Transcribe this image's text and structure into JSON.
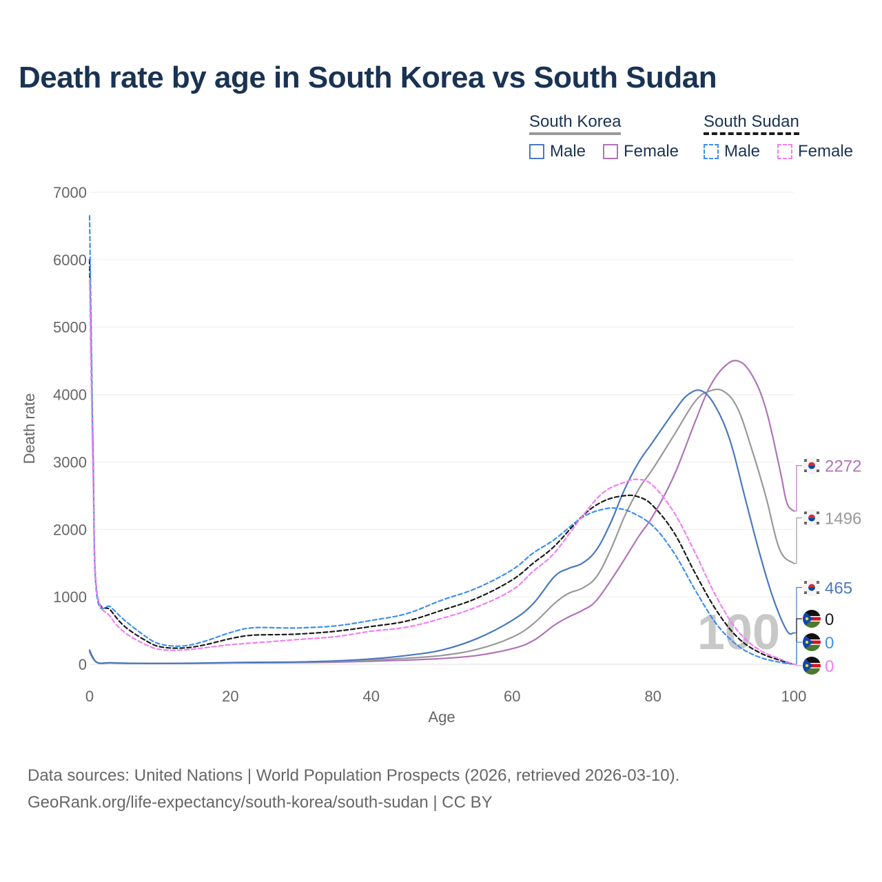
{
  "chart_data": {
    "type": "line",
    "title": "Death rate by age in South Korea vs South Sudan",
    "xlabel": "Age",
    "ylabel": "Death rate",
    "xlim": [
      0,
      100
    ],
    "ylim": [
      0,
      7000
    ],
    "xticks": [
      0,
      20,
      40,
      60,
      80,
      100
    ],
    "yticks": [
      0,
      1000,
      2000,
      3000,
      4000,
      5000,
      6000,
      7000
    ],
    "grid": true,
    "year_label": "100",
    "legend": {
      "groups": [
        {
          "name": "South Korea",
          "color": "#999999",
          "dash": false,
          "items": [
            {
              "label": "Male",
              "color": "#4a78c0",
              "dash": false
            },
            {
              "label": "Female",
              "color": "#b073b8",
              "dash": false
            }
          ]
        },
        {
          "name": "South Sudan",
          "color": "#1a1a1a",
          "dash": true,
          "items": [
            {
              "label": "Male",
              "color": "#3d8ef0",
              "dash": true
            },
            {
              "label": "Female",
              "color": "#f27ef2",
              "dash": true
            }
          ]
        }
      ]
    },
    "series": [
      {
        "name": "South Korea Female",
        "color": "#b073b8",
        "dash": false,
        "end_label": "2272",
        "flag": "south-korea",
        "x": [
          0,
          1,
          3,
          5,
          8,
          10,
          15,
          20,
          25,
          30,
          35,
          40,
          45,
          50,
          55,
          60,
          63,
          66,
          68,
          70,
          72,
          75,
          78,
          80,
          83,
          86,
          88,
          90,
          92,
          94,
          96,
          98,
          99,
          100
        ],
        "y": [
          180,
          30,
          20,
          15,
          12,
          12,
          14,
          20,
          22,
          25,
          32,
          45,
          62,
          85,
          130,
          230,
          350,
          580,
          700,
          800,
          950,
          1400,
          1900,
          2200,
          2800,
          3600,
          4100,
          4400,
          4500,
          4300,
          3800,
          2900,
          2400,
          2272
        ]
      },
      {
        "name": "South Korea Total",
        "color": "#999999",
        "dash": false,
        "end_label": "1496",
        "flag": "south-korea",
        "x": [
          0,
          1,
          3,
          5,
          8,
          10,
          15,
          20,
          25,
          30,
          35,
          40,
          45,
          50,
          55,
          60,
          63,
          66,
          68,
          70,
          72,
          74,
          76,
          78,
          80,
          83,
          86,
          88,
          90,
          92,
          94,
          96,
          98,
          100
        ],
        "y": [
          200,
          30,
          22,
          15,
          13,
          12,
          15,
          22,
          25,
          30,
          40,
          60,
          90,
          130,
          220,
          400,
          600,
          900,
          1050,
          1130,
          1300,
          1700,
          2200,
          2600,
          2900,
          3400,
          3900,
          4050,
          4050,
          3800,
          3200,
          2500,
          1700,
          1496
        ]
      },
      {
        "name": "South Korea Male",
        "color": "#4a78c0",
        "dash": false,
        "end_label": "465",
        "flag": "south-korea",
        "x": [
          0,
          1,
          3,
          5,
          8,
          10,
          15,
          20,
          25,
          30,
          35,
          40,
          45,
          50,
          55,
          60,
          63,
          66,
          68,
          70,
          72,
          74,
          76,
          78,
          80,
          83,
          85,
          87,
          89,
          91,
          93,
          95,
          97,
          99,
          100
        ],
        "y": [
          210,
          30,
          22,
          15,
          13,
          12,
          16,
          25,
          30,
          35,
          50,
          80,
          130,
          210,
          380,
          650,
          900,
          1300,
          1420,
          1500,
          1700,
          2100,
          2600,
          3000,
          3300,
          3750,
          4000,
          4050,
          3800,
          3300,
          2500,
          1700,
          1000,
          500,
          465
        ]
      },
      {
        "name": "South Sudan Total",
        "color": "#1a1a1a",
        "dash": true,
        "end_label": "0",
        "flag": "south-sudan",
        "x": [
          0,
          0.5,
          1,
          3,
          5,
          8,
          10,
          13,
          16,
          20,
          23,
          27,
          30,
          35,
          40,
          45,
          50,
          55,
          60,
          63,
          66,
          70,
          73,
          76,
          78,
          80,
          83,
          86,
          89,
          92,
          95,
          98,
          100
        ],
        "y": [
          6000,
          3000,
          1100,
          800,
          560,
          350,
          260,
          240,
          280,
          380,
          430,
          440,
          450,
          490,
          560,
          640,
          800,
          980,
          1250,
          1500,
          1750,
          2200,
          2420,
          2500,
          2480,
          2350,
          1950,
          1350,
          800,
          400,
          180,
          60,
          0
        ]
      },
      {
        "name": "South Sudan Male",
        "color": "#3d8ef0",
        "dash": true,
        "end_label": "0",
        "flag": "south-sudan",
        "x": [
          0,
          0.5,
          1,
          3,
          5,
          8,
          10,
          13,
          16,
          20,
          23,
          27,
          30,
          35,
          40,
          45,
          50,
          55,
          60,
          63,
          66,
          70,
          73,
          75,
          77,
          80,
          83,
          86,
          89,
          92,
          95,
          98,
          100
        ],
        "y": [
          6650,
          3100,
          1050,
          850,
          650,
          410,
          300,
          270,
          330,
          470,
          540,
          540,
          540,
          570,
          650,
          750,
          950,
          1130,
          1400,
          1650,
          1850,
          2180,
          2300,
          2310,
          2250,
          2050,
          1650,
          1100,
          600,
          280,
          110,
          30,
          0
        ]
      },
      {
        "name": "South Sudan Female",
        "color": "#f27ef2",
        "dash": true,
        "end_label": "0",
        "flag": "south-sudan",
        "x": [
          0,
          0.5,
          1,
          3,
          5,
          8,
          10,
          13,
          16,
          20,
          25,
          30,
          35,
          40,
          45,
          50,
          55,
          60,
          63,
          66,
          70,
          73,
          76,
          78,
          80,
          83,
          86,
          89,
          92,
          95,
          98,
          100
        ],
        "y": [
          5700,
          2800,
          1100,
          700,
          470,
          290,
          220,
          210,
          240,
          290,
          330,
          370,
          410,
          490,
          550,
          680,
          850,
          1100,
          1380,
          1650,
          2200,
          2550,
          2700,
          2740,
          2650,
          2250,
          1650,
          1000,
          500,
          220,
          80,
          0
        ]
      }
    ]
  },
  "footer": {
    "source_line": "Data sources: United Nations | World Population Prospects (2026, retrieved 2026-03-10).",
    "url_line": "GeoRank.org/life-expectancy/south-korea/south-sudan | CC BY"
  }
}
